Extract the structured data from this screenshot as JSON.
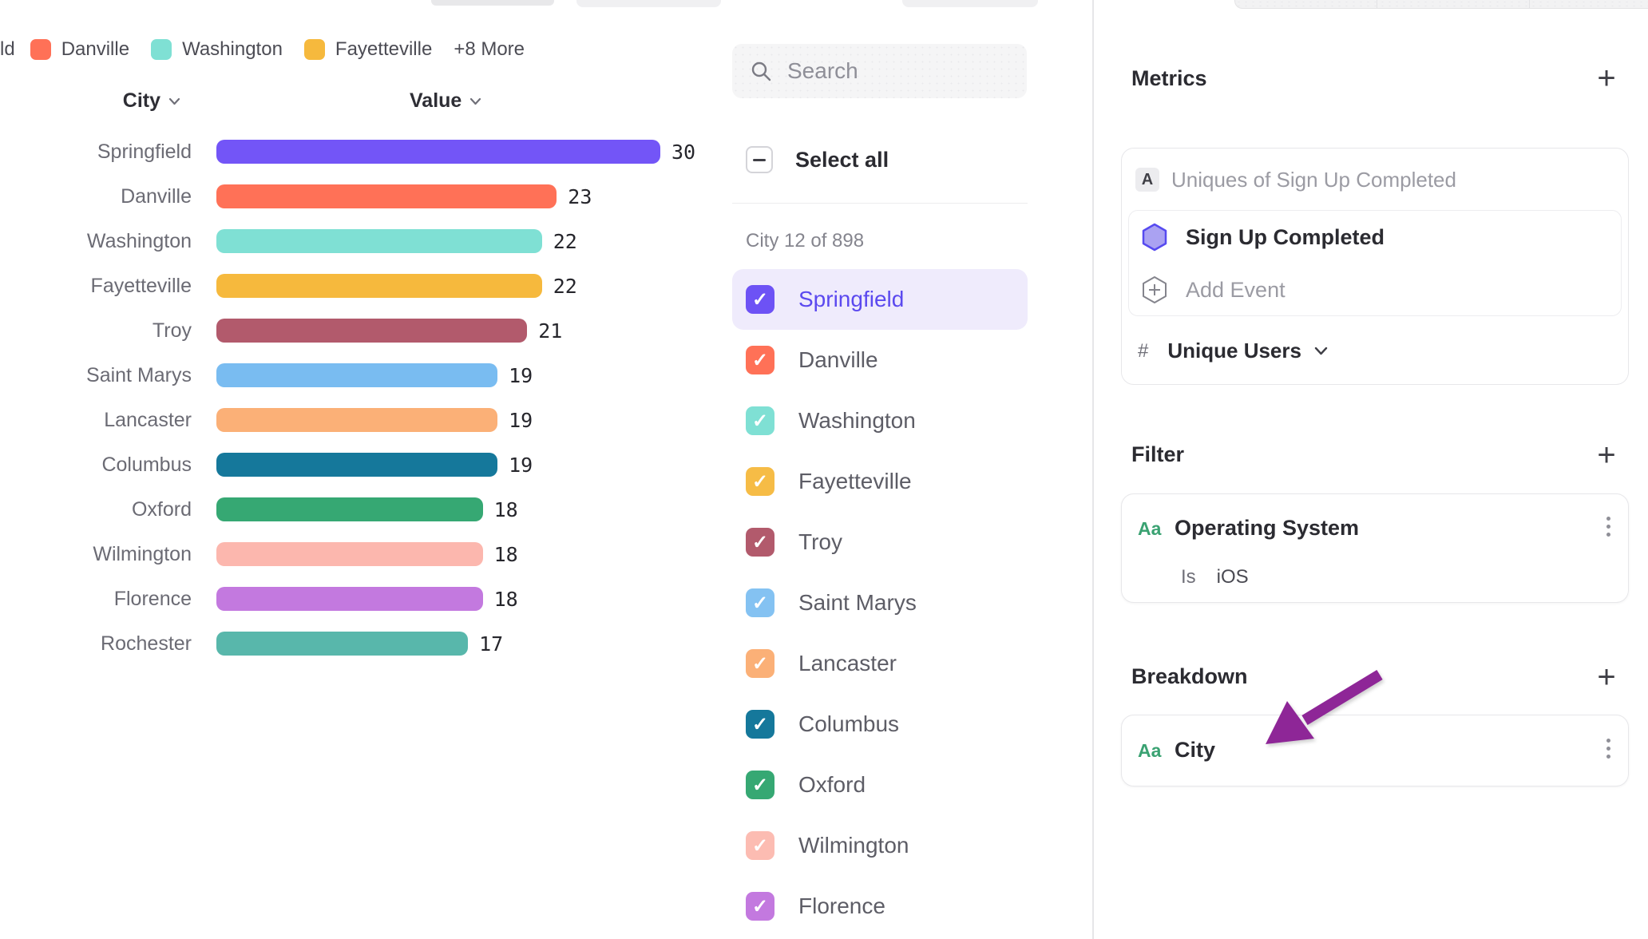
{
  "chart_data": {
    "type": "bar",
    "orientation": "horizontal",
    "column_headers": {
      "category": "City",
      "value": "Value"
    },
    "categories": [
      "Springfield",
      "Danville",
      "Washington",
      "Fayetteville",
      "Troy",
      "Saint Marys",
      "Lancaster",
      "Columbus",
      "Oxford",
      "Wilmington",
      "Florence",
      "Rochester"
    ],
    "values": [
      30,
      23,
      22,
      22,
      21,
      19,
      19,
      19,
      18,
      18,
      18,
      17
    ],
    "colors": [
      "#7355F7",
      "#FF7157",
      "#7FE0D4",
      "#F6B93D",
      "#B25A6C",
      "#79BCF1",
      "#FBB077",
      "#15789B",
      "#36A873",
      "#FCB7AE",
      "#C379DF",
      "#58B7AB"
    ],
    "xlim": [
      0,
      30
    ],
    "legend": {
      "clipped_label": "ld",
      "items": [
        {
          "label": "Danville",
          "color": "#FF7157"
        },
        {
          "label": "Washington",
          "color": "#7FE0D4"
        },
        {
          "label": "Fayetteville",
          "color": "#F6B93D"
        }
      ],
      "more_label": "+8 More"
    }
  },
  "city_selector": {
    "search_placeholder": "Search",
    "select_all_label": "Select all",
    "count_label": "City 12 of 898",
    "items": [
      {
        "label": "Springfield",
        "color": "#6D52F5",
        "checked": true,
        "highlighted": true
      },
      {
        "label": "Danville",
        "color": "#FF7157",
        "checked": true,
        "highlighted": false
      },
      {
        "label": "Washington",
        "color": "#7FE0D4",
        "checked": true,
        "highlighted": false
      },
      {
        "label": "Fayetteville",
        "color": "#F6BC46",
        "checked": true,
        "highlighted": false
      },
      {
        "label": "Troy",
        "color": "#B25A6C",
        "checked": true,
        "highlighted": false
      },
      {
        "label": "Saint Marys",
        "color": "#84C2F2",
        "checked": true,
        "highlighted": false
      },
      {
        "label": "Lancaster",
        "color": "#FBB077",
        "checked": true,
        "highlighted": false
      },
      {
        "label": "Columbus",
        "color": "#15789B",
        "checked": true,
        "highlighted": false
      },
      {
        "label": "Oxford",
        "color": "#36A873",
        "checked": true,
        "highlighted": false
      },
      {
        "label": "Wilmington",
        "color": "#FCBCB2",
        "checked": true,
        "highlighted": false
      },
      {
        "label": "Florence",
        "color": "#C379DF",
        "checked": true,
        "highlighted": false
      }
    ]
  },
  "inspector": {
    "metrics": {
      "title": "Metrics",
      "add_button": "+",
      "metric_badge": "A",
      "metric_label": "Uniques of Sign Up Completed",
      "event_label": "Sign Up Completed",
      "add_event_label": "Add Event",
      "aggregation_prefix": "#",
      "aggregation_label": "Unique Users"
    },
    "filter": {
      "title": "Filter",
      "add_button": "+",
      "type_icon": "Aa",
      "property_label": "Operating System",
      "operator": "Is",
      "value": "iOS"
    },
    "breakdown": {
      "title": "Breakdown",
      "add_button": "+",
      "type_icon": "Aa",
      "property_label": "City"
    }
  },
  "annotation": {
    "arrow_color": "#8E2697"
  }
}
